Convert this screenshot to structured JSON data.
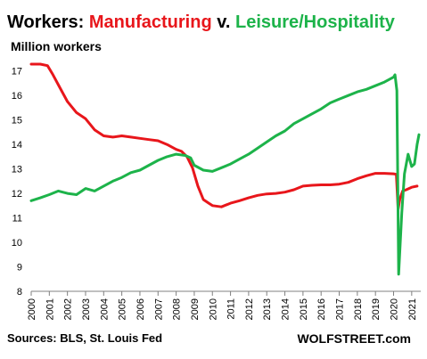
{
  "title": {
    "prefix": "Workers: ",
    "series1": "Manufacturing",
    "sep": " v. ",
    "series2": "Leisure/Hospitality"
  },
  "subtitle": "Million workers",
  "source": "Sources: BLS, St. Louis Fed",
  "brand": "WOLFSTREET.com",
  "colors": {
    "manufacturing": "#e8161b",
    "leisure": "#1db34a",
    "text": "#000000",
    "axis": "#808080",
    "grid": "#d9d9d9"
  },
  "chart_data": {
    "type": "line",
    "title": "Workers: Manufacturing v. Leisure/Hospitality",
    "ylabel": "Million workers",
    "xlabel": "",
    "ylim": [
      8,
      17.5
    ],
    "xlim": [
      2000,
      2021.5
    ],
    "yticks": [
      8,
      9,
      10,
      11,
      12,
      13,
      14,
      15,
      16,
      17
    ],
    "xticks": [
      "2000",
      "2001",
      "2002",
      "2003",
      "2004",
      "2005",
      "2006",
      "2007",
      "2008",
      "2009",
      "2010",
      "2011",
      "2012",
      "2013",
      "2014",
      "2015",
      "2016",
      "2017",
      "2018",
      "2019",
      "2020",
      "2021"
    ],
    "grid": false,
    "series": [
      {
        "name": "Manufacturing",
        "color": "#e8161b",
        "x": [
          2000.0,
          2000.5,
          2000.9,
          2001.2,
          2001.6,
          2002.0,
          2002.5,
          2003.0,
          2003.5,
          2004.0,
          2004.5,
          2005.0,
          2005.5,
          2006.0,
          2006.5,
          2007.0,
          2007.5,
          2008.0,
          2008.3,
          2008.6,
          2008.9,
          2009.2,
          2009.5,
          2009.8,
          2010.0,
          2010.5,
          2011.0,
          2011.5,
          2012.0,
          2012.5,
          2013.0,
          2013.5,
          2014.0,
          2014.5,
          2015.0,
          2015.5,
          2016.0,
          2016.5,
          2017.0,
          2017.5,
          2018.0,
          2018.5,
          2019.0,
          2019.5,
          2020.0,
          2020.15,
          2020.25,
          2020.35,
          2020.5,
          2020.7,
          2021.0,
          2021.3
        ],
        "y": [
          17.28,
          17.28,
          17.22,
          16.85,
          16.3,
          15.75,
          15.3,
          15.05,
          14.6,
          14.35,
          14.3,
          14.35,
          14.3,
          14.25,
          14.2,
          14.15,
          14.0,
          13.8,
          13.72,
          13.5,
          13.05,
          12.3,
          11.75,
          11.6,
          11.5,
          11.45,
          11.6,
          11.7,
          11.82,
          11.92,
          11.98,
          12.0,
          12.05,
          12.15,
          12.3,
          12.33,
          12.35,
          12.35,
          12.38,
          12.45,
          12.6,
          12.72,
          12.82,
          12.82,
          12.8,
          12.78,
          11.35,
          11.78,
          12.1,
          12.15,
          12.25,
          12.3
        ]
      },
      {
        "name": "Leisure/Hospitality",
        "color": "#1db34a",
        "x": [
          2000.0,
          2000.5,
          2001.0,
          2001.5,
          2002.0,
          2002.5,
          2003.0,
          2003.5,
          2004.0,
          2004.5,
          2005.0,
          2005.5,
          2006.0,
          2006.5,
          2007.0,
          2007.5,
          2008.0,
          2008.5,
          2008.8,
          2009.0,
          2009.5,
          2010.0,
          2010.5,
          2011.0,
          2011.5,
          2012.0,
          2012.5,
          2013.0,
          2013.5,
          2014.0,
          2014.5,
          2015.0,
          2015.5,
          2016.0,
          2016.5,
          2017.0,
          2017.5,
          2018.0,
          2018.5,
          2019.0,
          2019.5,
          2020.0,
          2020.08,
          2020.18,
          2020.28,
          2020.45,
          2020.6,
          2020.8,
          2021.0,
          2021.15,
          2021.3,
          2021.4
        ],
        "y": [
          11.7,
          11.82,
          11.95,
          12.1,
          12.0,
          11.95,
          12.2,
          12.1,
          12.3,
          12.5,
          12.65,
          12.85,
          12.95,
          13.15,
          13.35,
          13.5,
          13.6,
          13.55,
          13.45,
          13.15,
          12.95,
          12.9,
          13.05,
          13.2,
          13.4,
          13.6,
          13.85,
          14.1,
          14.35,
          14.55,
          14.85,
          15.05,
          15.25,
          15.45,
          15.7,
          15.85,
          16.0,
          16.15,
          16.25,
          16.4,
          16.55,
          16.75,
          16.85,
          16.2,
          8.7,
          11.2,
          12.8,
          13.6,
          13.1,
          13.2,
          14.0,
          14.4
        ]
      }
    ]
  }
}
